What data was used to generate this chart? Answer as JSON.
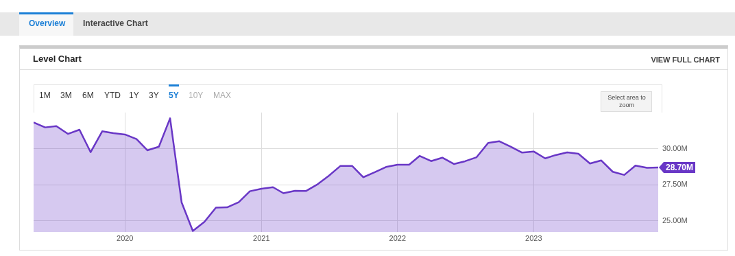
{
  "chart_data": {
    "type": "area",
    "title": "Level Chart",
    "annotations": [
      "Overview",
      "Interactive Chart",
      "VIEW FULL CHART",
      "1M",
      "3M",
      "6M",
      "YTD",
      "1Y",
      "3Y",
      "5Y",
      "10Y",
      "MAX",
      "Select area to zoom"
    ],
    "x": [
      "2019-05",
      "2019-06",
      "2019-07",
      "2019-08",
      "2019-09",
      "2019-10",
      "2019-11",
      "2019-12",
      "2020-01",
      "2020-02",
      "2020-03",
      "2020-04",
      "2020-05",
      "2020-06",
      "2020-07",
      "2020-08",
      "2020-09",
      "2020-10",
      "2020-11",
      "2020-12",
      "2021-01",
      "2021-02",
      "2021-03",
      "2021-04",
      "2021-05",
      "2021-06",
      "2021-07",
      "2021-08",
      "2021-09",
      "2021-10",
      "2021-11",
      "2021-12",
      "2022-01",
      "2022-02",
      "2022-03",
      "2022-04",
      "2022-05",
      "2022-06",
      "2022-07",
      "2022-08",
      "2022-09",
      "2022-10",
      "2022-11",
      "2022-12",
      "2023-01",
      "2023-02",
      "2023-03",
      "2023-04",
      "2023-05",
      "2023-06",
      "2023-07",
      "2023-08",
      "2023-09",
      "2023-10",
      "2023-11",
      "2023-12"
    ],
    "series": [
      {
        "color": "#6937c6",
        "values": [
          31.83,
          31.48,
          31.57,
          31.03,
          31.32,
          29.76,
          31.21,
          31.08,
          30.99,
          30.67,
          29.89,
          30.14,
          32.11,
          26.27,
          24.29,
          24.92,
          25.91,
          25.93,
          26.29,
          27.05,
          27.22,
          27.33,
          26.91,
          27.08,
          27.07,
          27.54,
          28.13,
          28.81,
          28.81,
          28.02,
          28.37,
          28.73,
          28.89,
          28.89,
          29.5,
          29.14,
          29.38,
          28.94,
          29.13,
          29.41,
          30.4,
          30.52,
          30.13,
          29.73,
          29.81,
          29.33,
          29.56,
          29.75,
          29.65,
          28.97,
          29.19,
          28.4,
          28.18,
          28.83,
          28.67,
          28.7
        ],
        "value_labels": [
          null,
          null,
          null,
          null,
          null,
          null,
          null,
          null,
          null,
          null,
          null,
          null,
          null,
          null,
          null,
          null,
          null,
          null,
          null,
          null,
          null,
          null,
          null,
          null,
          null,
          null,
          null,
          null,
          null,
          null,
          null,
          null,
          null,
          null,
          null,
          null,
          null,
          null,
          null,
          null,
          null,
          null,
          null,
          null,
          null,
          null,
          null,
          null,
          null,
          null,
          null,
          null,
          null,
          null,
          null,
          "28.70M"
        ]
      }
    ],
    "xlim": [
      "2019-05",
      "2023-12"
    ],
    "xticks": [
      "2020",
      "2021",
      "2022",
      "2023"
    ],
    "ylim": [
      24.22,
      32.51
    ],
    "yticks": [
      {
        "value": 25,
        "label": "25.00M"
      },
      {
        "value": 27.5,
        "label": "27.50M"
      },
      {
        "value": 30,
        "label": "30.00M"
      }
    ],
    "grid": true,
    "legend": false,
    "marker": "none",
    "line_style": "solid"
  }
}
